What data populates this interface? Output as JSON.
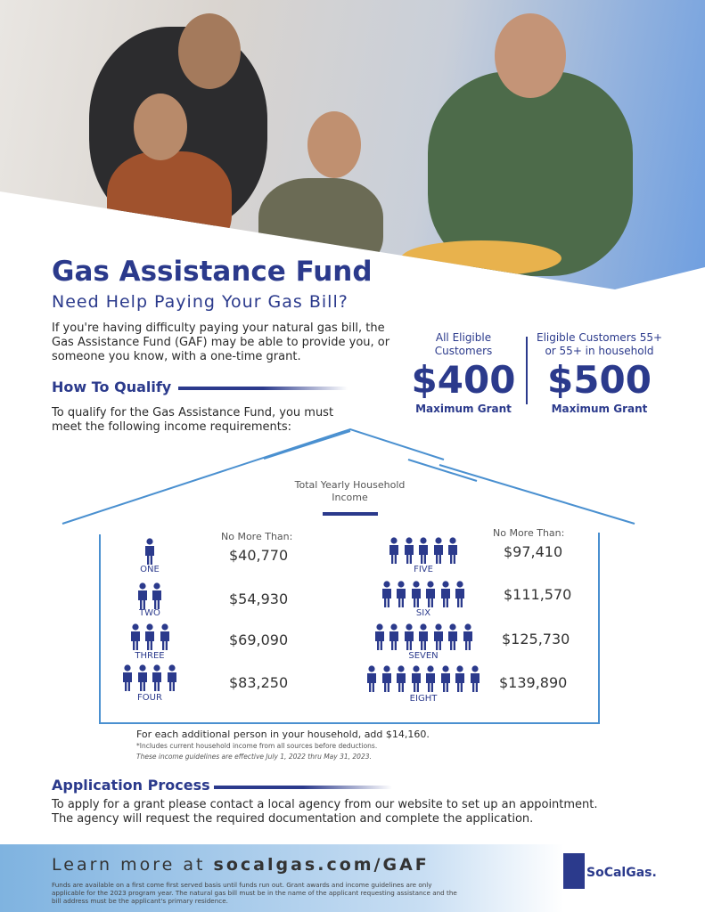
{
  "header": {
    "title": "Gas Assistance Fund",
    "subtitle": "Need Help Paying Your Gas Bill?",
    "intro": "If you're having difficulty paying your natural gas bill, the Gas Assistance Fund (GAF) may be able to provide you, or someone you know, with a one-time grant."
  },
  "qualify": {
    "heading": "How To Qualify",
    "text": "To qualify for the Gas Assistance Fund, you must meet the following income requirements:"
  },
  "grants": [
    {
      "label": "All Eligible Customers",
      "amount": "$400",
      "note": "Maximum Grant"
    },
    {
      "label": "Eligible Customers 55+ or 55+ in household",
      "amount": "$500",
      "note": "Maximum Grant"
    }
  ],
  "income": {
    "title": "Total Yearly Household Income",
    "no_more_than": "No More Than:",
    "rows": [
      {
        "size": 1,
        "label": "ONE",
        "amount": "$40,770"
      },
      {
        "size": 2,
        "label": "TWO",
        "amount": "$54,930"
      },
      {
        "size": 3,
        "label": "THREE",
        "amount": "$69,090"
      },
      {
        "size": 4,
        "label": "FOUR",
        "amount": "$83,250"
      },
      {
        "size": 5,
        "label": "FIVE",
        "amount": "$97,410"
      },
      {
        "size": 6,
        "label": "SIX",
        "amount": "$111,570"
      },
      {
        "size": 7,
        "label": "SEVEN",
        "amount": "$125,730"
      },
      {
        "size": 8,
        "label": "EIGHT",
        "amount": "$139,890"
      }
    ],
    "additional": "For each additional person in your household, add $14,160.",
    "footnote": "*Includes current household income from all sources before deductions.",
    "effective": "These income guidelines are effective July 1, 2022 thru May 31, 2023."
  },
  "application": {
    "heading": "Application Process",
    "text": "To apply for a grant please contact a local agency from our website to set up an appointment. The agency will request the required documentation and complete the application."
  },
  "footer": {
    "learn": "Learn more at ",
    "url": "socalgas.com/GAF",
    "disclaimer": "Funds are available on a first come first served basis until funds run out. Grant awards and income guidelines are only applicable for the 2023 program year. The natural gas bill must be in the name of the applicant requesting assistance and the bill address must be the applicant's primary residence.",
    "logo": "SoCalGas."
  },
  "colors": {
    "brand": "#2b3a8c",
    "house": "#4a90d0"
  }
}
